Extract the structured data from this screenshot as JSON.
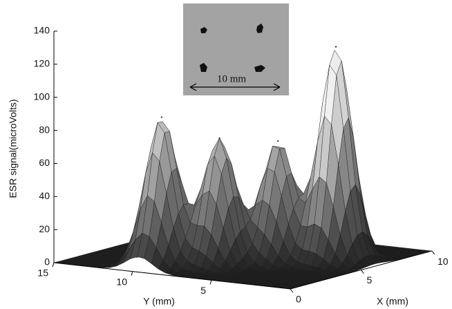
{
  "chart_data": {
    "type": "surface3d",
    "zlabel": "ESR signal(microVolts)",
    "xlabel": "X (mm)",
    "ylabel": "Y (mm)",
    "inset_label": "10 mm",
    "xlim": [
      0,
      10
    ],
    "ylim": [
      0,
      15
    ],
    "zlim": [
      0,
      140
    ],
    "xticks": [
      0,
      5,
      10
    ],
    "yticks": [
      5,
      10,
      15
    ],
    "zticks": [
      0,
      20,
      40,
      60,
      80,
      100,
      120,
      140
    ],
    "peaks": [
      {
        "x": 6,
        "y": 2.5,
        "z": 130
      },
      {
        "x": 1.6,
        "y": 9.6,
        "z": 90
      },
      {
        "x": 2.9,
        "y": 7.1,
        "z": 77
      },
      {
        "x": 4.8,
        "y": 5.1,
        "z": 73
      }
    ]
  }
}
